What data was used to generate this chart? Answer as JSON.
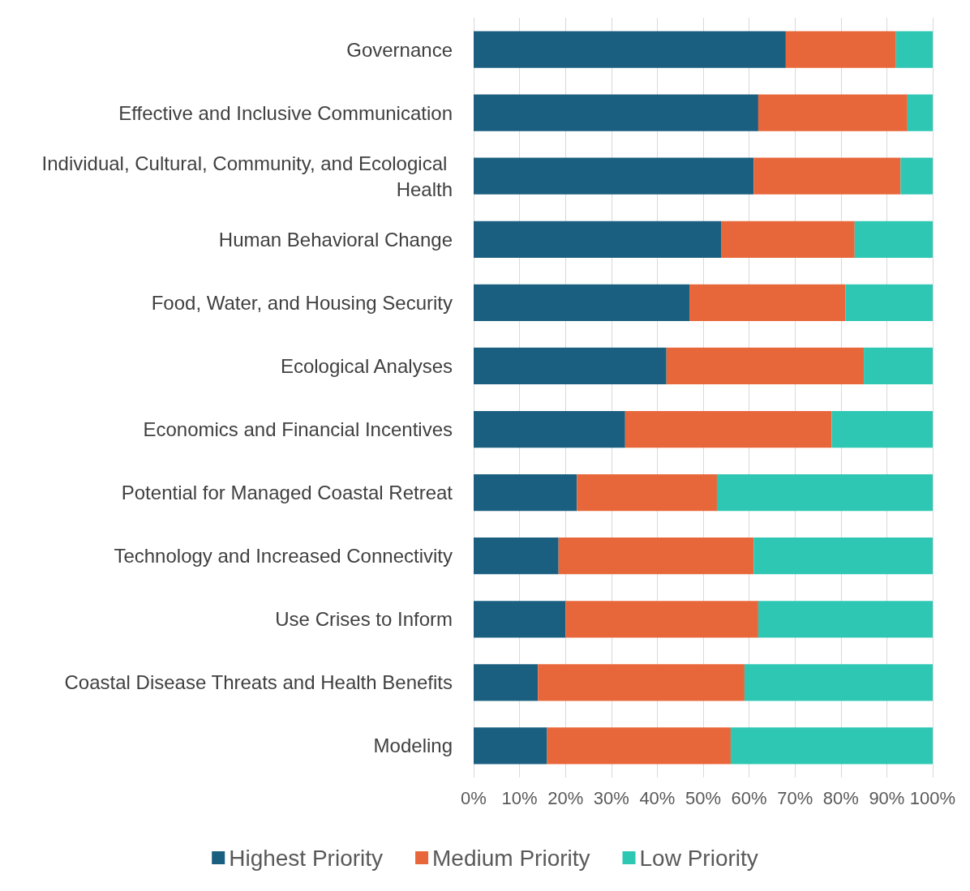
{
  "chart_data": {
    "type": "bar",
    "orientation": "horizontal",
    "stacked": true,
    "categories": [
      "Governance",
      "Effective and Inclusive Communication",
      "Individual, Cultural, Community, and Ecological Health",
      "Human Behavioral Change",
      "Food, Water, and Housing Security",
      "Ecological Analyses",
      "Economics and Financial Incentives",
      "Potential for Managed Coastal Retreat",
      "Technology and Increased Connectivity",
      "Use Crises to Inform",
      "Coastal Disease Threats and Health Benefits",
      "Modeling"
    ],
    "series": [
      {
        "name": "Highest Priority",
        "color": "#1a5f80",
        "values": [
          68,
          62,
          61,
          54,
          47,
          42,
          33,
          22.5,
          18.5,
          20,
          14,
          16
        ]
      },
      {
        "name": "Medium Priority",
        "color": "#e8673a",
        "values": [
          24,
          32.5,
          32,
          29,
          34,
          43,
          45,
          30.5,
          42.5,
          42,
          45,
          40
        ]
      },
      {
        "name": "Low Priority",
        "color": "#2ec7b3",
        "values": [
          8,
          5.5,
          7,
          17,
          19,
          15,
          22,
          47,
          39,
          38,
          41,
          44
        ]
      }
    ],
    "xlim": [
      0,
      100
    ],
    "xticks": [
      {
        "value": 0,
        "label": "0%"
      },
      {
        "value": 10,
        "label": "10%"
      },
      {
        "value": 20,
        "label": "20%"
      },
      {
        "value": 30,
        "label": "30%"
      },
      {
        "value": 40,
        "label": "40%"
      },
      {
        "value": 50,
        "label": "50%"
      },
      {
        "value": 60,
        "label": "60%"
      },
      {
        "value": 70,
        "label": "70%"
      },
      {
        "value": 80,
        "label": "80%"
      },
      {
        "value": 90,
        "label": "90%"
      },
      {
        "value": 100,
        "label": "100%"
      }
    ],
    "grid": "x",
    "legend": "bottom"
  }
}
